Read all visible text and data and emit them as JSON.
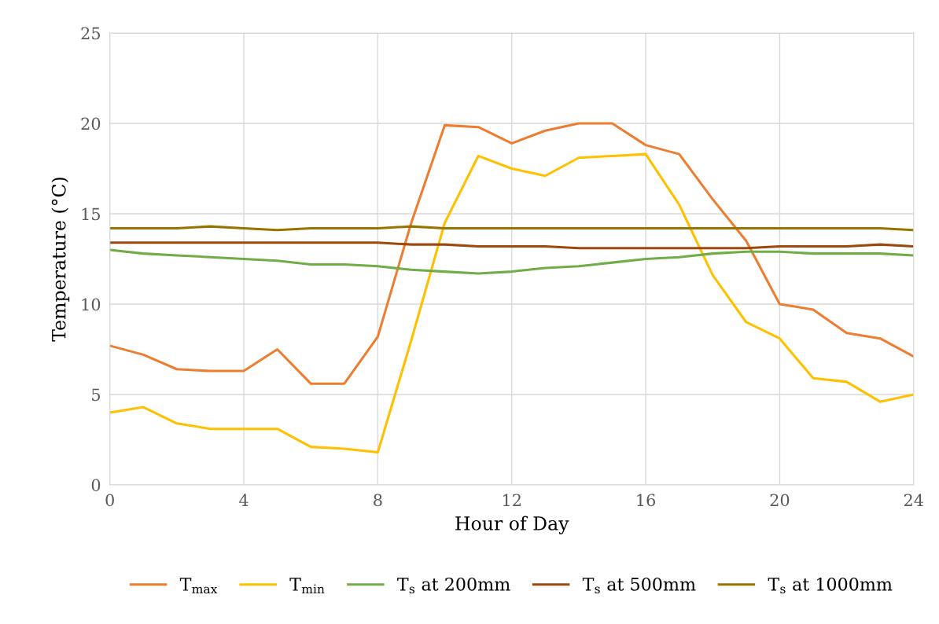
{
  "chart_data": {
    "type": "line",
    "xlabel": "Hour of Day",
    "ylabel": "Temperature (°C)",
    "x": [
      0,
      1,
      2,
      3,
      4,
      5,
      6,
      7,
      8,
      9,
      10,
      11,
      12,
      13,
      14,
      15,
      16,
      17,
      18,
      19,
      20,
      21,
      22,
      23,
      24
    ],
    "xlim": [
      0,
      24
    ],
    "xticks": [
      0,
      4,
      8,
      12,
      16,
      20,
      24
    ],
    "ylim": [
      0,
      25
    ],
    "yticks": [
      0,
      5,
      10,
      15,
      20,
      25
    ],
    "grid": true,
    "legend": "bottom",
    "marker": "none",
    "line_style": "solid",
    "series": [
      {
        "name": "T$_{max}$",
        "color": "#ed7d31",
        "values": [
          7.7,
          7.2,
          6.4,
          6.3,
          6.3,
          7.5,
          5.6,
          5.6,
          8.2,
          14.5,
          19.9,
          19.8,
          18.9,
          19.6,
          20.0,
          20.0,
          18.8,
          18.3,
          15.8,
          13.5,
          10.0,
          9.7,
          8.4,
          8.1,
          7.1
        ]
      },
      {
        "name": "T$_{min}$",
        "color": "#ffc000",
        "values": [
          4.0,
          4.3,
          3.4,
          3.1,
          3.1,
          3.1,
          2.1,
          2.0,
          1.8,
          8.0,
          14.5,
          18.2,
          17.5,
          17.1,
          18.1,
          18.2,
          18.3,
          15.5,
          11.6,
          9.0,
          8.1,
          5.9,
          5.7,
          4.6,
          5.0
        ]
      },
      {
        "name": "T$_{s}$ at 200mm",
        "color": "#70ad47",
        "values": [
          13.0,
          12.8,
          12.7,
          12.6,
          12.5,
          12.4,
          12.2,
          12.2,
          12.1,
          11.9,
          11.8,
          11.7,
          11.8,
          12.0,
          12.1,
          12.3,
          12.5,
          12.6,
          12.8,
          12.9,
          12.9,
          12.8,
          12.8,
          12.8,
          12.7
        ]
      },
      {
        "name": "T$_{s}$ at 500mm",
        "color": "#9e480e",
        "values": [
          13.4,
          13.4,
          13.4,
          13.4,
          13.4,
          13.4,
          13.4,
          13.4,
          13.4,
          13.3,
          13.3,
          13.2,
          13.2,
          13.2,
          13.1,
          13.1,
          13.1,
          13.1,
          13.1,
          13.1,
          13.2,
          13.2,
          13.2,
          13.3,
          13.2
        ]
      },
      {
        "name": "T$_{s}$ at 1000mm",
        "color": "#997300",
        "values": [
          14.2,
          14.2,
          14.2,
          14.3,
          14.2,
          14.1,
          14.2,
          14.2,
          14.2,
          14.3,
          14.2,
          14.2,
          14.2,
          14.2,
          14.2,
          14.2,
          14.2,
          14.2,
          14.2,
          14.2,
          14.2,
          14.2,
          14.2,
          14.2,
          14.1
        ]
      }
    ]
  }
}
